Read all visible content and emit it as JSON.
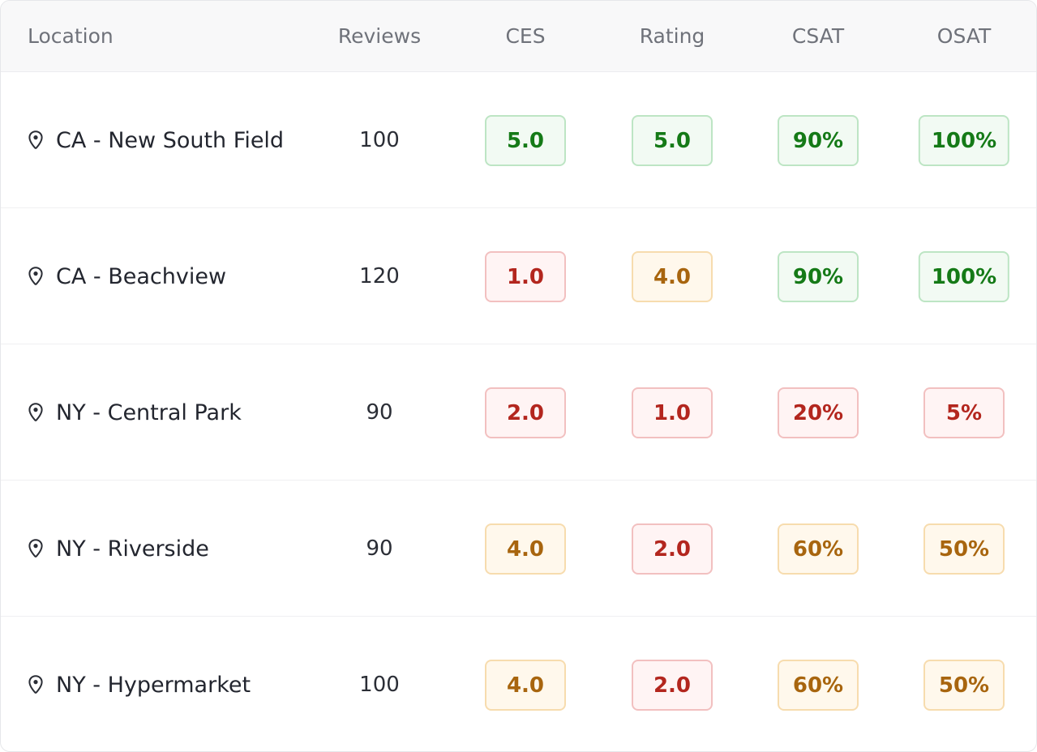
{
  "columns": {
    "location": "Location",
    "reviews": "Reviews",
    "ces": "CES",
    "rating": "Rating",
    "csat": "CSAT",
    "osat": "OSAT"
  },
  "status_colors": {
    "good": "#157a17",
    "warning": "#a8650e",
    "bad": "#b3261e"
  },
  "rows": [
    {
      "location": "CA - New South Field",
      "reviews": "100",
      "ces": {
        "value": "5.0",
        "status": "green"
      },
      "rating": {
        "value": "5.0",
        "status": "green"
      },
      "csat": {
        "value": "90%",
        "status": "green"
      },
      "osat": {
        "value": "100%",
        "status": "green"
      }
    },
    {
      "location": "CA - Beachview",
      "reviews": "120",
      "ces": {
        "value": "1.0",
        "status": "red"
      },
      "rating": {
        "value": "4.0",
        "status": "amber"
      },
      "csat": {
        "value": "90%",
        "status": "green"
      },
      "osat": {
        "value": "100%",
        "status": "green"
      }
    },
    {
      "location": "NY - Central Park",
      "reviews": "90",
      "ces": {
        "value": "2.0",
        "status": "red"
      },
      "rating": {
        "value": "1.0",
        "status": "red"
      },
      "csat": {
        "value": "20%",
        "status": "red"
      },
      "osat": {
        "value": "5%",
        "status": "red"
      }
    },
    {
      "location": "NY - Riverside",
      "reviews": "90",
      "ces": {
        "value": "4.0",
        "status": "amber"
      },
      "rating": {
        "value": "2.0",
        "status": "red"
      },
      "csat": {
        "value": "60%",
        "status": "amber"
      },
      "osat": {
        "value": "50%",
        "status": "amber"
      }
    },
    {
      "location": "NY - Hypermarket",
      "reviews": "100",
      "ces": {
        "value": "4.0",
        "status": "amber"
      },
      "rating": {
        "value": "2.0",
        "status": "red"
      },
      "csat": {
        "value": "60%",
        "status": "amber"
      },
      "osat": {
        "value": "50%",
        "status": "amber"
      }
    }
  ],
  "icons": {
    "location": "map-pin-icon"
  }
}
